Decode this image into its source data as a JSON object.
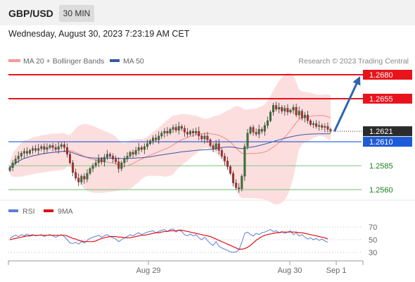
{
  "header": {
    "pair": "GBP/USD",
    "timeframe": "30 MIN",
    "datetime": "Wednesday, August 30, 2023 7:23:19 AM CET"
  },
  "price_legend": {
    "ma20_label": "MA 20 + Bollinger Bands",
    "ma50_label": "MA 50",
    "copyright": "Research © 2023 Trading Central"
  },
  "rsi_legend": {
    "rsi_label": "RSI",
    "ma9_label": "9MA"
  },
  "colors": {
    "resistance": "#e8141c",
    "current": "#2b2b2b",
    "support_blue": "#1e5bd8",
    "support_green": "#8cc88c",
    "green_text": "#1a7f1a",
    "candle_up": "#2e7d32",
    "candle_down": "#c62828",
    "band_fill": "#fdd8d8",
    "ma20": "#f08a8a",
    "ma50": "#3558a6",
    "rsi": "#5b7fd6",
    "rsi_ma": "#e01010",
    "arrow": "#2e64b4"
  },
  "chart_data": [
    {
      "type": "candlestick",
      "name": "GBP/USD 30 MIN",
      "x_ticks": [
        "Aug 29",
        "Aug 30",
        "Sep 1"
      ],
      "levels": [
        {
          "value": 1.268,
          "label": "1.2680",
          "kind": "resistance"
        },
        {
          "value": 1.2655,
          "label": "1.2655",
          "kind": "resistance"
        },
        {
          "value": 1.2621,
          "label": "1.2621",
          "kind": "current"
        },
        {
          "value": 1.261,
          "label": "1.2610",
          "kind": "support-blue"
        },
        {
          "value": 1.2585,
          "label": "1.2585",
          "kind": "support-green"
        },
        {
          "value": 1.256,
          "label": "1.2560",
          "kind": "support-green"
        }
      ],
      "projection": {
        "from": 1.2621,
        "to": 1.268
      },
      "close": [
        1.2583,
        1.2588,
        1.2592,
        1.2595,
        1.2598,
        1.26,
        1.2598,
        1.2601,
        1.2603,
        1.2601,
        1.2603,
        1.2605,
        1.2602,
        1.2604,
        1.2606,
        1.2604,
        1.2602,
        1.2605,
        1.2607,
        1.2604,
        1.2597,
        1.2588,
        1.2578,
        1.2572,
        1.2568,
        1.2574,
        1.2571,
        1.2577,
        1.2582,
        1.2585,
        1.2588,
        1.2592,
        1.2589,
        1.2594,
        1.2597,
        1.2595,
        1.2592,
        1.2589,
        1.2582,
        1.2588,
        1.2592,
        1.2595,
        1.2599,
        1.2597,
        1.2601,
        1.2604,
        1.2602,
        1.2605,
        1.2608,
        1.2611,
        1.2614,
        1.2612,
        1.2616,
        1.2619,
        1.2621,
        1.2619,
        1.2623,
        1.2625,
        1.2622,
        1.2626,
        1.2624,
        1.262,
        1.2618,
        1.2621,
        1.2619,
        1.2621,
        1.2616,
        1.2613,
        1.2616,
        1.2612,
        1.2606,
        1.2603,
        1.2608,
        1.2601,
        1.2595,
        1.259,
        1.2584,
        1.2577,
        1.2567,
        1.2562,
        1.2561,
        1.2574,
        1.2605,
        1.2619,
        1.2625,
        1.262,
        1.2618,
        1.2623,
        1.2621,
        1.2627,
        1.2632,
        1.2641,
        1.2648,
        1.2644,
        1.2646,
        1.2642,
        1.2645,
        1.2641,
        1.2643,
        1.2646,
        1.2638,
        1.2642,
        1.2635,
        1.2638,
        1.2632,
        1.2628,
        1.2629,
        1.2626,
        1.2627,
        1.2625,
        1.2626,
        1.2623,
        1.2621
      ]
    },
    {
      "type": "line",
      "name": "RSI",
      "y_ticks": [
        70,
        50,
        30
      ],
      "ylim": [
        20,
        80
      ],
      "series": [
        {
          "name": "RSI",
          "values": [
            52,
            55,
            57,
            55,
            58,
            56,
            59,
            57,
            58,
            56,
            57,
            58,
            55,
            57,
            58,
            56,
            54,
            56,
            58,
            55,
            50,
            45,
            44,
            46,
            43,
            47,
            45,
            49,
            52,
            54,
            55,
            57,
            54,
            56,
            58,
            55,
            53,
            51,
            47,
            50,
            53,
            55,
            58,
            56,
            59,
            61,
            58,
            60,
            62,
            63,
            64,
            61,
            63,
            65,
            66,
            63,
            66,
            67,
            62,
            65,
            63,
            58,
            56,
            59,
            56,
            58,
            53,
            50,
            54,
            49,
            44,
            41,
            47,
            40,
            37,
            35,
            33,
            31,
            30,
            31,
            34,
            46,
            60,
            62,
            58,
            56,
            60,
            58,
            61,
            62,
            64,
            66,
            63,
            64,
            61,
            63,
            60,
            62,
            64,
            58,
            61,
            56,
            58,
            54,
            51,
            53,
            50,
            52,
            49,
            51,
            48,
            46
          ]
        },
        {
          "name": "9MA",
          "values": [
            50,
            51,
            52,
            53,
            54,
            55,
            56,
            56,
            57,
            57,
            57,
            57,
            57,
            57,
            57,
            57,
            57,
            57,
            57,
            57,
            56,
            54,
            52,
            51,
            49,
            48,
            47,
            47,
            47,
            47,
            48,
            50,
            52,
            53,
            54,
            55,
            55,
            55,
            54,
            54,
            53,
            53,
            53,
            54,
            55,
            56,
            57,
            57,
            58,
            59,
            60,
            61,
            61,
            62,
            63,
            63,
            64,
            64,
            64,
            65,
            65,
            64,
            63,
            62,
            61,
            60,
            59,
            58,
            57,
            56,
            55,
            53,
            51,
            49,
            47,
            45,
            43,
            41,
            39,
            37,
            35,
            35,
            36,
            38,
            41,
            45,
            49,
            52,
            55,
            57,
            58,
            59,
            60,
            61,
            61,
            62,
            62,
            62,
            62,
            62,
            62,
            61,
            61,
            60,
            59,
            58,
            57,
            56,
            55,
            54,
            53,
            51
          ]
        }
      ]
    }
  ]
}
